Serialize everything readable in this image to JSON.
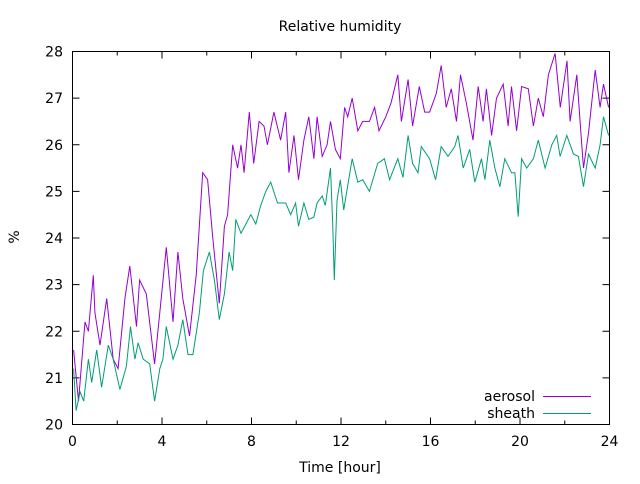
{
  "chart_data": {
    "type": "line",
    "title": "Relative humidity",
    "xlabel": "Time [hour]",
    "ylabel": "%",
    "xlim": [
      0,
      24
    ],
    "ylim": [
      20,
      28
    ],
    "xticks": [
      0,
      4,
      8,
      12,
      16,
      20,
      24
    ],
    "xminor": [
      2,
      6,
      10,
      14,
      18,
      22
    ],
    "yticks": [
      20,
      21,
      22,
      23,
      24,
      25,
      26,
      27,
      28
    ],
    "grid": false,
    "legend_position": "bottom-right",
    "series": [
      {
        "name": "aerosol",
        "color": "#9400d3",
        "points": [
          [
            0.05,
            21.6
          ],
          [
            0.27,
            20.5
          ],
          [
            0.56,
            22.2
          ],
          [
            0.71,
            22.0
          ],
          [
            0.93,
            23.2
          ],
          [
            1.0,
            22.4
          ],
          [
            1.23,
            21.7
          ],
          [
            1.53,
            22.7
          ],
          [
            1.82,
            21.4
          ],
          [
            2.04,
            21.2
          ],
          [
            2.34,
            22.7
          ],
          [
            2.56,
            23.4
          ],
          [
            2.86,
            22.1
          ],
          [
            3.0,
            23.1
          ],
          [
            3.3,
            22.8
          ],
          [
            3.67,
            21.3
          ],
          [
            3.9,
            22.4
          ],
          [
            4.19,
            23.8
          ],
          [
            4.49,
            22.2
          ],
          [
            4.71,
            23.7
          ],
          [
            4.93,
            22.7
          ],
          [
            5.23,
            21.9
          ],
          [
            5.53,
            23.2
          ],
          [
            5.82,
            25.4
          ],
          [
            6.04,
            25.25
          ],
          [
            6.27,
            24.0
          ],
          [
            6.56,
            22.6
          ],
          [
            6.79,
            24.25
          ],
          [
            6.93,
            24.5
          ],
          [
            7.16,
            26.0
          ],
          [
            7.38,
            25.5
          ],
          [
            7.53,
            26.0
          ],
          [
            7.67,
            25.4
          ],
          [
            7.9,
            26.7
          ],
          [
            8.1,
            25.6
          ],
          [
            8.34,
            26.5
          ],
          [
            8.56,
            26.4
          ],
          [
            8.71,
            26.0
          ],
          [
            9.0,
            26.7
          ],
          [
            9.3,
            26.1
          ],
          [
            9.53,
            26.7
          ],
          [
            9.67,
            25.4
          ],
          [
            9.9,
            26.2
          ],
          [
            10.1,
            25.25
          ],
          [
            10.34,
            26.1
          ],
          [
            10.56,
            26.6
          ],
          [
            10.79,
            25.7
          ],
          [
            10.93,
            26.6
          ],
          [
            11.16,
            25.75
          ],
          [
            11.38,
            26.0
          ],
          [
            11.53,
            26.5
          ],
          [
            11.75,
            25.9
          ],
          [
            11.97,
            25.7
          ],
          [
            12.16,
            26.8
          ],
          [
            12.3,
            26.6
          ],
          [
            12.5,
            27.0
          ],
          [
            12.75,
            26.3
          ],
          [
            12.97,
            26.5
          ],
          [
            13.27,
            26.5
          ],
          [
            13.5,
            26.8
          ],
          [
            13.7,
            26.3
          ],
          [
            14.0,
            26.6
          ],
          [
            14.24,
            26.9
          ],
          [
            14.54,
            27.5
          ],
          [
            14.7,
            26.5
          ],
          [
            15.0,
            27.4
          ],
          [
            15.2,
            26.4
          ],
          [
            15.5,
            27.25
          ],
          [
            15.74,
            26.7
          ],
          [
            15.96,
            26.7
          ],
          [
            16.26,
            27.1
          ],
          [
            16.48,
            27.7
          ],
          [
            16.7,
            26.8
          ],
          [
            16.93,
            27.2
          ],
          [
            17.16,
            26.5
          ],
          [
            17.34,
            27.5
          ],
          [
            17.6,
            26.9
          ],
          [
            17.9,
            26.1
          ],
          [
            18.13,
            27.25
          ],
          [
            18.35,
            26.5
          ],
          [
            18.5,
            27.2
          ],
          [
            18.73,
            26.2
          ],
          [
            18.95,
            27.0
          ],
          [
            19.25,
            27.3
          ],
          [
            19.47,
            26.4
          ],
          [
            19.62,
            27.25
          ],
          [
            19.85,
            26.3
          ],
          [
            20.07,
            27.25
          ],
          [
            20.37,
            27.2
          ],
          [
            20.6,
            26.4
          ],
          [
            20.82,
            27.0
          ],
          [
            21.04,
            26.6
          ],
          [
            21.27,
            27.5
          ],
          [
            21.57,
            27.96
          ],
          [
            21.8,
            26.8
          ],
          [
            22.1,
            27.8
          ],
          [
            22.24,
            26.5
          ],
          [
            22.54,
            27.5
          ],
          [
            22.7,
            26.4
          ],
          [
            22.84,
            25.5
          ],
          [
            23.06,
            26.25
          ],
          [
            23.36,
            27.6
          ],
          [
            23.58,
            26.8
          ],
          [
            23.73,
            27.3
          ],
          [
            23.96,
            26.8
          ]
        ]
      },
      {
        "name": "sheath",
        "color": "#009e73",
        "points": [
          [
            0.05,
            21.2
          ],
          [
            0.16,
            20.3
          ],
          [
            0.34,
            20.7
          ],
          [
            0.5,
            20.5
          ],
          [
            0.71,
            21.4
          ],
          [
            0.86,
            20.9
          ],
          [
            1.08,
            21.6
          ],
          [
            1.3,
            20.8
          ],
          [
            1.6,
            21.7
          ],
          [
            1.82,
            21.4
          ],
          [
            2.12,
            20.75
          ],
          [
            2.41,
            21.25
          ],
          [
            2.59,
            22.1
          ],
          [
            2.79,
            21.4
          ],
          [
            2.93,
            21.75
          ],
          [
            3.16,
            21.4
          ],
          [
            3.45,
            21.3
          ],
          [
            3.67,
            20.5
          ],
          [
            3.9,
            21.2
          ],
          [
            4.04,
            21.4
          ],
          [
            4.19,
            22.1
          ],
          [
            4.49,
            21.4
          ],
          [
            4.71,
            21.7
          ],
          [
            4.93,
            22.25
          ],
          [
            5.16,
            21.5
          ],
          [
            5.38,
            21.5
          ],
          [
            5.67,
            22.4
          ],
          [
            5.85,
            23.3
          ],
          [
            6.12,
            23.7
          ],
          [
            6.34,
            23.1
          ],
          [
            6.56,
            22.25
          ],
          [
            6.79,
            22.8
          ],
          [
            7.0,
            23.7
          ],
          [
            7.16,
            23.3
          ],
          [
            7.3,
            24.4
          ],
          [
            7.53,
            24.1
          ],
          [
            7.75,
            24.3
          ],
          [
            7.97,
            24.5
          ],
          [
            8.19,
            24.3
          ],
          [
            8.41,
            24.7
          ],
          [
            8.64,
            25.0
          ],
          [
            8.86,
            25.2
          ],
          [
            9.16,
            24.75
          ],
          [
            9.53,
            24.75
          ],
          [
            9.75,
            24.5
          ],
          [
            9.97,
            24.75
          ],
          [
            10.1,
            24.25
          ],
          [
            10.34,
            24.75
          ],
          [
            10.56,
            24.4
          ],
          [
            10.79,
            24.45
          ],
          [
            10.93,
            24.75
          ],
          [
            11.16,
            24.9
          ],
          [
            11.3,
            24.7
          ],
          [
            11.53,
            25.5
          ],
          [
            11.63,
            24.3
          ],
          [
            11.7,
            23.1
          ],
          [
            11.82,
            24.8
          ],
          [
            11.97,
            25.25
          ],
          [
            12.12,
            24.6
          ],
          [
            12.5,
            25.7
          ],
          [
            12.75,
            25.2
          ],
          [
            12.97,
            25.25
          ],
          [
            13.27,
            25.0
          ],
          [
            13.64,
            25.6
          ],
          [
            13.94,
            25.7
          ],
          [
            14.17,
            25.25
          ],
          [
            14.54,
            25.7
          ],
          [
            14.77,
            25.3
          ],
          [
            15.0,
            26.2
          ],
          [
            15.2,
            25.6
          ],
          [
            15.44,
            25.4
          ],
          [
            15.59,
            25.96
          ],
          [
            15.96,
            25.7
          ],
          [
            16.23,
            25.25
          ],
          [
            16.48,
            25.96
          ],
          [
            16.78,
            25.75
          ],
          [
            17.08,
            25.96
          ],
          [
            17.23,
            26.2
          ],
          [
            17.46,
            25.5
          ],
          [
            17.75,
            25.9
          ],
          [
            17.98,
            25.2
          ],
          [
            18.28,
            25.7
          ],
          [
            18.43,
            25.25
          ],
          [
            18.65,
            26.1
          ],
          [
            18.88,
            25.5
          ],
          [
            19.1,
            25.1
          ],
          [
            19.32,
            25.7
          ],
          [
            19.62,
            25.4
          ],
          [
            19.77,
            25.4
          ],
          [
            19.92,
            24.46
          ],
          [
            20.07,
            25.7
          ],
          [
            20.3,
            25.5
          ],
          [
            20.6,
            25.7
          ],
          [
            20.82,
            26.1
          ],
          [
            21.12,
            25.5
          ],
          [
            21.42,
            26.0
          ],
          [
            21.64,
            26.2
          ],
          [
            21.79,
            25.75
          ],
          [
            22.09,
            26.2
          ],
          [
            22.39,
            25.8
          ],
          [
            22.61,
            25.75
          ],
          [
            22.84,
            25.1
          ],
          [
            23.06,
            25.8
          ],
          [
            23.36,
            25.5
          ],
          [
            23.58,
            26.0
          ],
          [
            23.73,
            26.6
          ],
          [
            23.96,
            26.2
          ]
        ]
      }
    ]
  }
}
